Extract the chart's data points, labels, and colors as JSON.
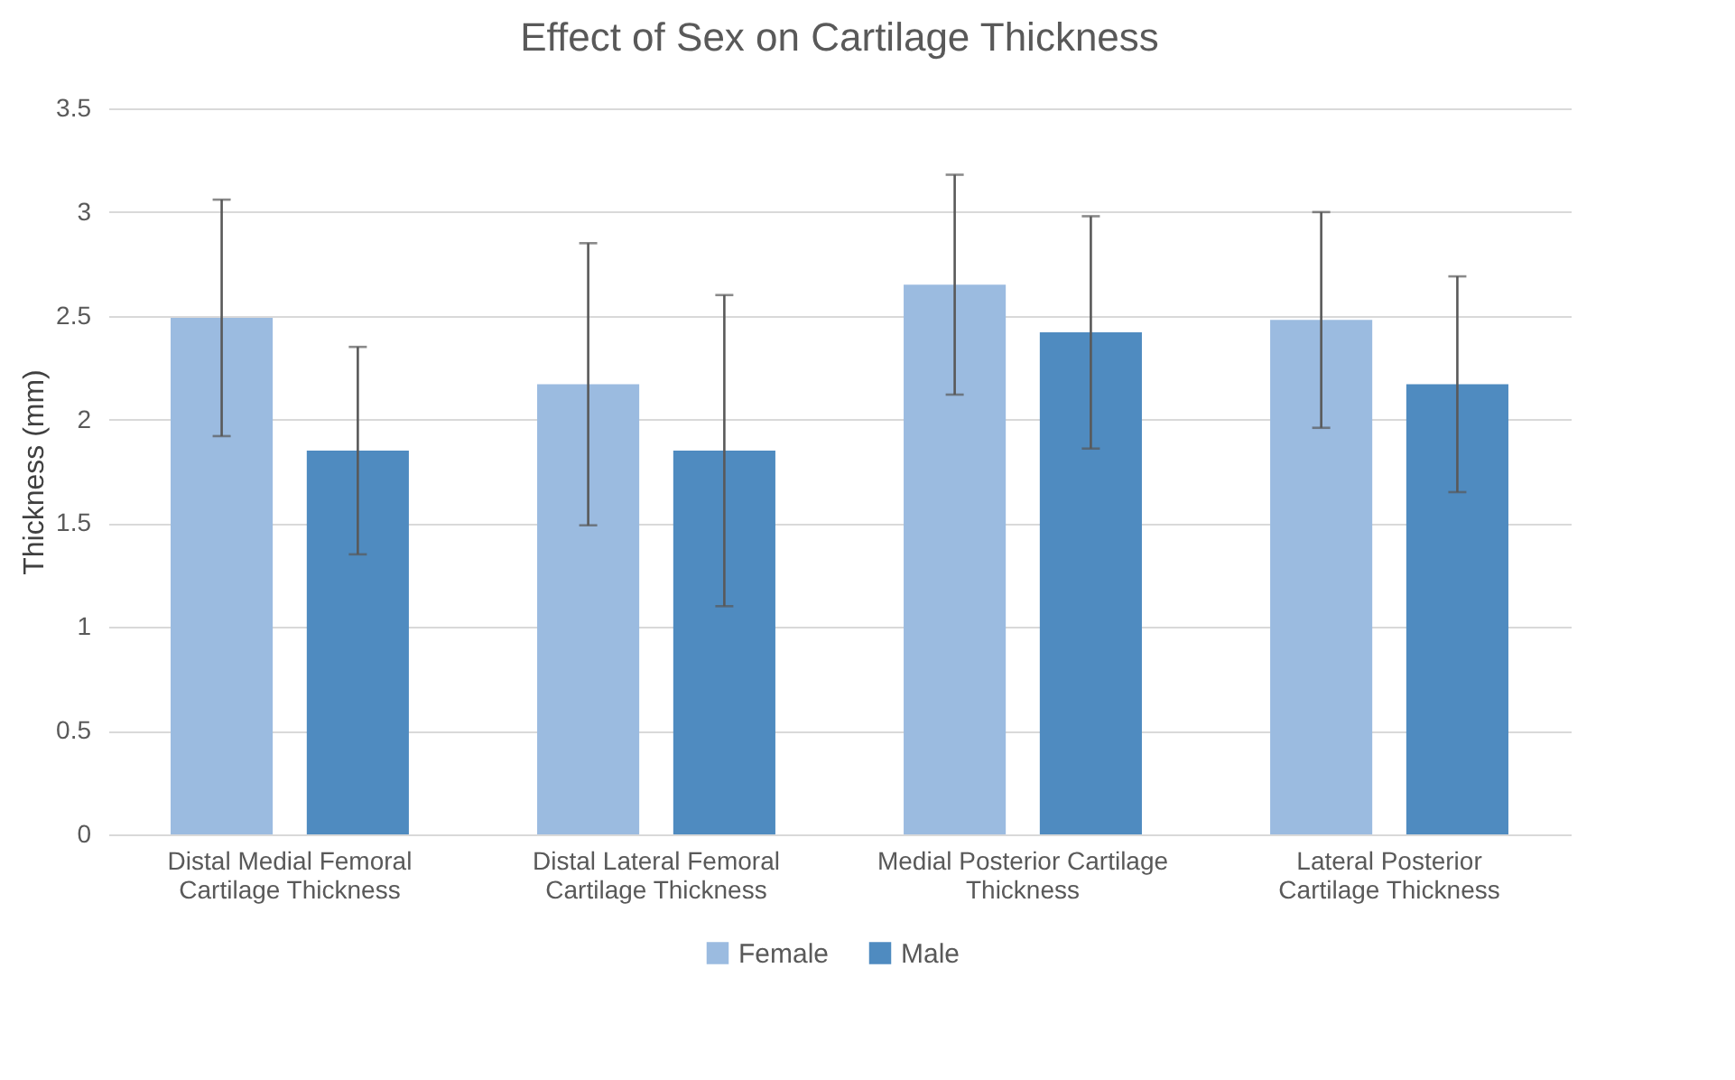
{
  "chart_data": {
    "type": "bar",
    "title": "Effect of Sex on Cartilage Thickness",
    "ylabel": "Thickness (mm)",
    "categories": [
      "Distal Medial Femoral Cartilage Thickness",
      "Distal Lateral Femoral Cartilage Thickness",
      "Medial Posterior Cartilage Thickness",
      "Lateral Posterior Cartilage Thickness"
    ],
    "series": [
      {
        "name": "Female",
        "color": "#9bbbe0",
        "values": [
          2.49,
          2.17,
          2.65,
          2.48
        ],
        "errors": [
          0.57,
          0.68,
          0.53,
          0.52
        ]
      },
      {
        "name": "Male",
        "color": "#4f8bc0",
        "values": [
          1.85,
          1.85,
          2.42,
          2.17
        ],
        "errors": [
          0.5,
          0.75,
          0.56,
          0.52
        ]
      }
    ],
    "ylim": [
      0,
      3.5
    ],
    "yticks": [
      0,
      0.5,
      1,
      1.5,
      2,
      2.5,
      3,
      3.5
    ],
    "grid": "y",
    "legend": "bottom"
  }
}
